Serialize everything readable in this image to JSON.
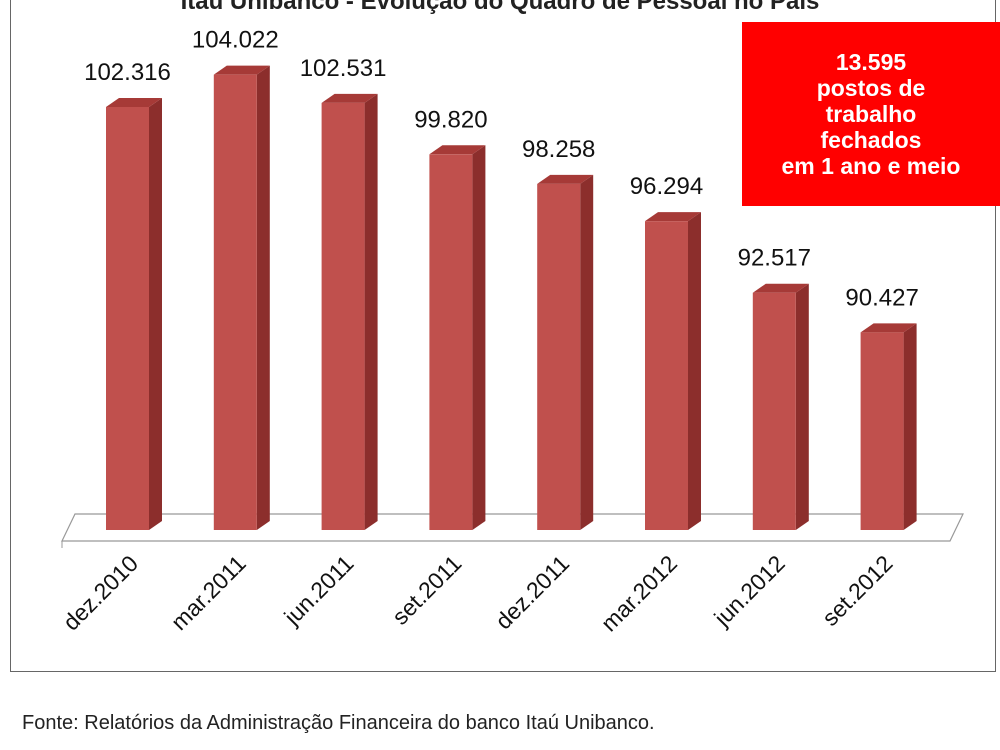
{
  "chart_data": {
    "type": "bar",
    "title": "Itaú Unibanco - Evolução do Quadro de Pessoal no País",
    "categories": [
      "dez.2010",
      "mar.2011",
      "jun.2011",
      "set.2011",
      "dez.2011",
      "mar.2012",
      "jun.2012",
      "set.2012"
    ],
    "values": [
      102316,
      104022,
      102531,
      99820,
      98258,
      96294,
      92517,
      90427
    ],
    "value_labels": [
      "102.316",
      "104.022",
      "102.531",
      "99.820",
      "98.258",
      "96.294",
      "92.517",
      "90.427"
    ],
    "xlabel": "",
    "ylabel": "",
    "ylim": [
      80000,
      106000
    ],
    "grid": false,
    "bar_style": "3d-column",
    "colors": {
      "bar": "#c0504d",
      "bar_side": "#8c2e2c",
      "bar_top": "#a63a37",
      "annotation_bg": "#ff0000"
    }
  },
  "annotation": {
    "lines": [
      "13.595",
      "postos de",
      "trabalho",
      "fechados",
      "em 1 ano e meio"
    ]
  },
  "source": "Fonte: Relatórios da Administração Financeira do banco Itaú Unibanco."
}
